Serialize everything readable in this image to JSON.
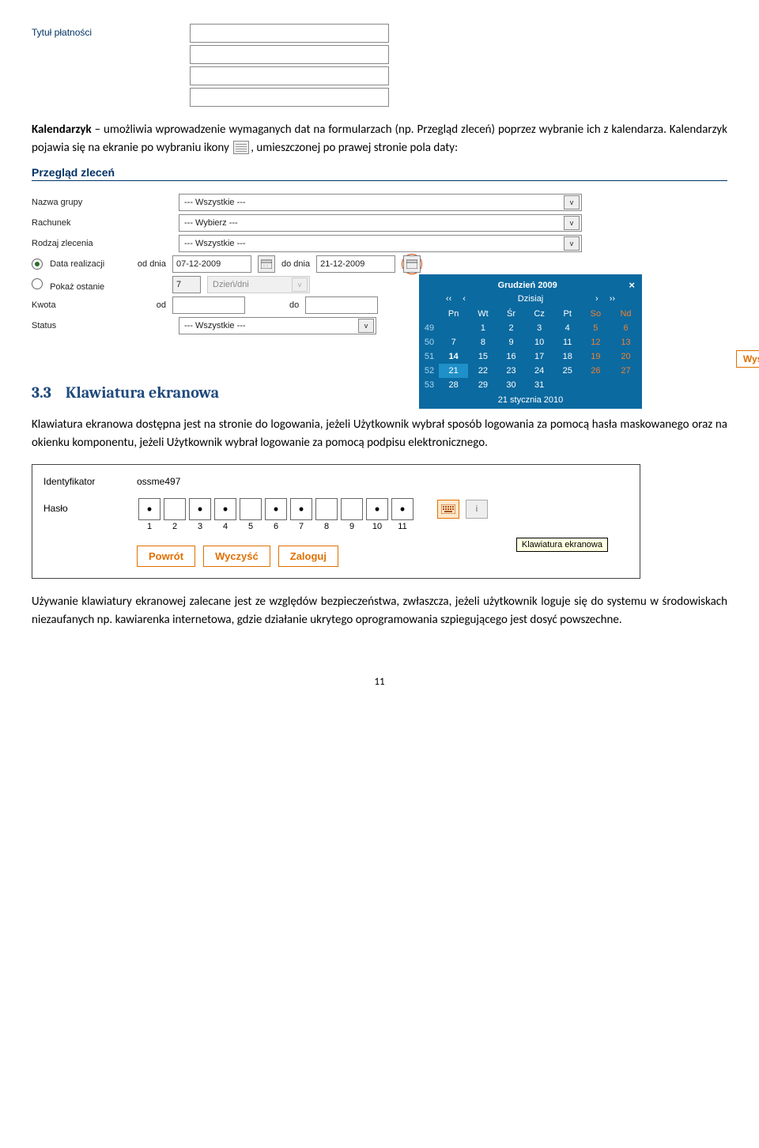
{
  "top_form": {
    "label": "Tytuł płatności",
    "inputs": 4
  },
  "para1_pre_bold": "Kalendarzyk",
  "para1_rest": " – umożliwia wprowadzenie wymaganych dat na formularzach (np. Przegląd zleceń) poprzez wybranie ich z kalendarza. Kalendarzyk pojawia się na ekranie po wybraniu ikony ",
  "para1_end": ", umieszczonej po prawej stronie pola daty:",
  "section_title": "Przegląd zleceń",
  "filters": {
    "nazwa_grupy": {
      "label": "Nazwa grupy",
      "value": "--- Wszystkie ---"
    },
    "rachunek": {
      "label": "Rachunek",
      "value": "--- Wybierz ---"
    },
    "rodzaj": {
      "label": "Rodzaj zlecenia",
      "value": "--- Wszystkie ---"
    },
    "data_realizacji": {
      "label": "Data realizacji",
      "od_label": "od dnia",
      "od_value": "07-12-2009",
      "do_label": "do dnia",
      "do_value": "21-12-2009"
    },
    "pokaz_ostanie": {
      "label": "Pokaż ostanie",
      "value": "7",
      "unit": "Dzień/dni"
    },
    "kwota": {
      "label": "Kwota",
      "od": "od",
      "do": "do"
    },
    "status": {
      "label": "Status",
      "value": "--- Wszystkie ---"
    }
  },
  "calendar": {
    "title": "Grudzień 2009",
    "today_label": "Dzisiaj",
    "nav_ll": "‹‹",
    "nav_l": "‹",
    "nav_r": "›",
    "nav_rr": "››",
    "days": [
      "Pn",
      "Wt",
      "Śr",
      "Cz",
      "Pt",
      "So",
      "Nd"
    ],
    "weeks": [
      {
        "wk": "49",
        "cells": [
          "",
          "1",
          "2",
          "3",
          "4",
          "5",
          "6"
        ]
      },
      {
        "wk": "50",
        "cells": [
          "7",
          "8",
          "9",
          "10",
          "11",
          "12",
          "13"
        ]
      },
      {
        "wk": "51",
        "cells": [
          "14",
          "15",
          "16",
          "17",
          "18",
          "19",
          "20"
        ]
      },
      {
        "wk": "52",
        "cells": [
          "21",
          "22",
          "23",
          "24",
          "25",
          "26",
          "27"
        ]
      },
      {
        "wk": "53",
        "cells": [
          "28",
          "29",
          "30",
          "31",
          "",
          "",
          ""
        ]
      }
    ],
    "selected": "21",
    "today_bold": "14",
    "footer": "21 stycznia 2010"
  },
  "show_button": "Wyświetl",
  "heading_num": "3.3",
  "heading_text": "Klawiatura ekranowa",
  "para2": "Klawiatura ekranowa dostępna jest na stronie do logowania, jeżeli Użytkownik wybrał sposób logowania za pomocą hasła maskowanego oraz na okienku komponentu, jeżeli Użytkownik wybrał logowanie za pomocą podpisu elektronicznego.",
  "login": {
    "id_label": "Identyfikator",
    "id_value": "ossme497",
    "pw_label": "Hasło",
    "nums": [
      "1",
      "2",
      "3",
      "4",
      "5",
      "6",
      "7",
      "8",
      "9",
      "10",
      "11"
    ],
    "filled": [
      true,
      false,
      true,
      true,
      false,
      true,
      true,
      false,
      false,
      true,
      true
    ],
    "tooltip": "Klawiatura ekranowa",
    "buttons": [
      "Powrót",
      "Wyczyść",
      "Zaloguj"
    ]
  },
  "para3": "Używanie klawiatury ekranowej zalecane jest ze względów bezpieczeństwa, zwłaszcza, jeżeli użytkownik loguje się do systemu w środowiskach niezaufanych np. kawiarenka internetowa, gdzie działanie ukrytego oprogramowania szpiegującego jest dosyć powszechne.",
  "page": "11"
}
